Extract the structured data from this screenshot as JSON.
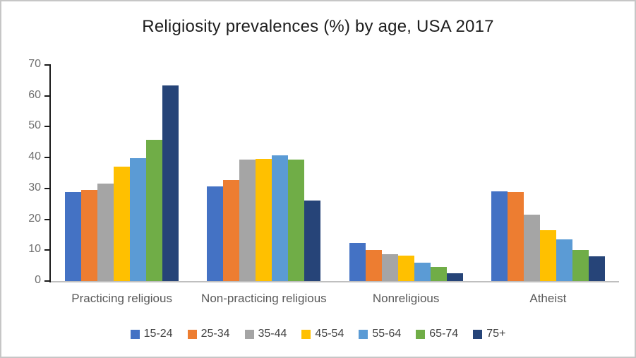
{
  "frame": {
    "background": "#ffffff",
    "border_color": "#c6c6c6"
  },
  "chart_data": {
    "type": "bar",
    "title": "Religiosity prevalences (%) by age, USA 2017",
    "xlabel": "",
    "ylabel": "",
    "ylim": [
      0,
      70
    ],
    "yticks": [
      0,
      10,
      20,
      30,
      40,
      50,
      60,
      70
    ],
    "grid": false,
    "legend_position": "bottom",
    "axis_color": "#1a1a1a",
    "baseline_color": "#bfbfbf",
    "tick_label_color": "#6e6e6e",
    "category_label_color": "#595959",
    "categories": [
      "Practicing religious",
      "Non-practicing religious",
      "Nonreligious",
      "Atheist"
    ],
    "series": [
      {
        "name": "15-24",
        "color": "#4472C4",
        "values": [
          28.8,
          30.7,
          12.3,
          29.1
        ]
      },
      {
        "name": "25-34",
        "color": "#ED7D31",
        "values": [
          29.5,
          32.7,
          10.1,
          28.8
        ]
      },
      {
        "name": "35-44",
        "color": "#A5A5A5",
        "values": [
          31.5,
          39.4,
          8.7,
          21.4
        ]
      },
      {
        "name": "45-54",
        "color": "#FFC000",
        "values": [
          37.0,
          39.6,
          8.2,
          16.4
        ]
      },
      {
        "name": "55-64",
        "color": "#5B9BD5",
        "values": [
          39.7,
          40.7,
          5.9,
          13.6
        ]
      },
      {
        "name": "65-74",
        "color": "#70AD47",
        "values": [
          45.8,
          39.3,
          4.5,
          10.1
        ]
      },
      {
        "name": "75+",
        "color": "#264478",
        "values": [
          63.3,
          26.0,
          2.6,
          7.9
        ]
      }
    ]
  }
}
